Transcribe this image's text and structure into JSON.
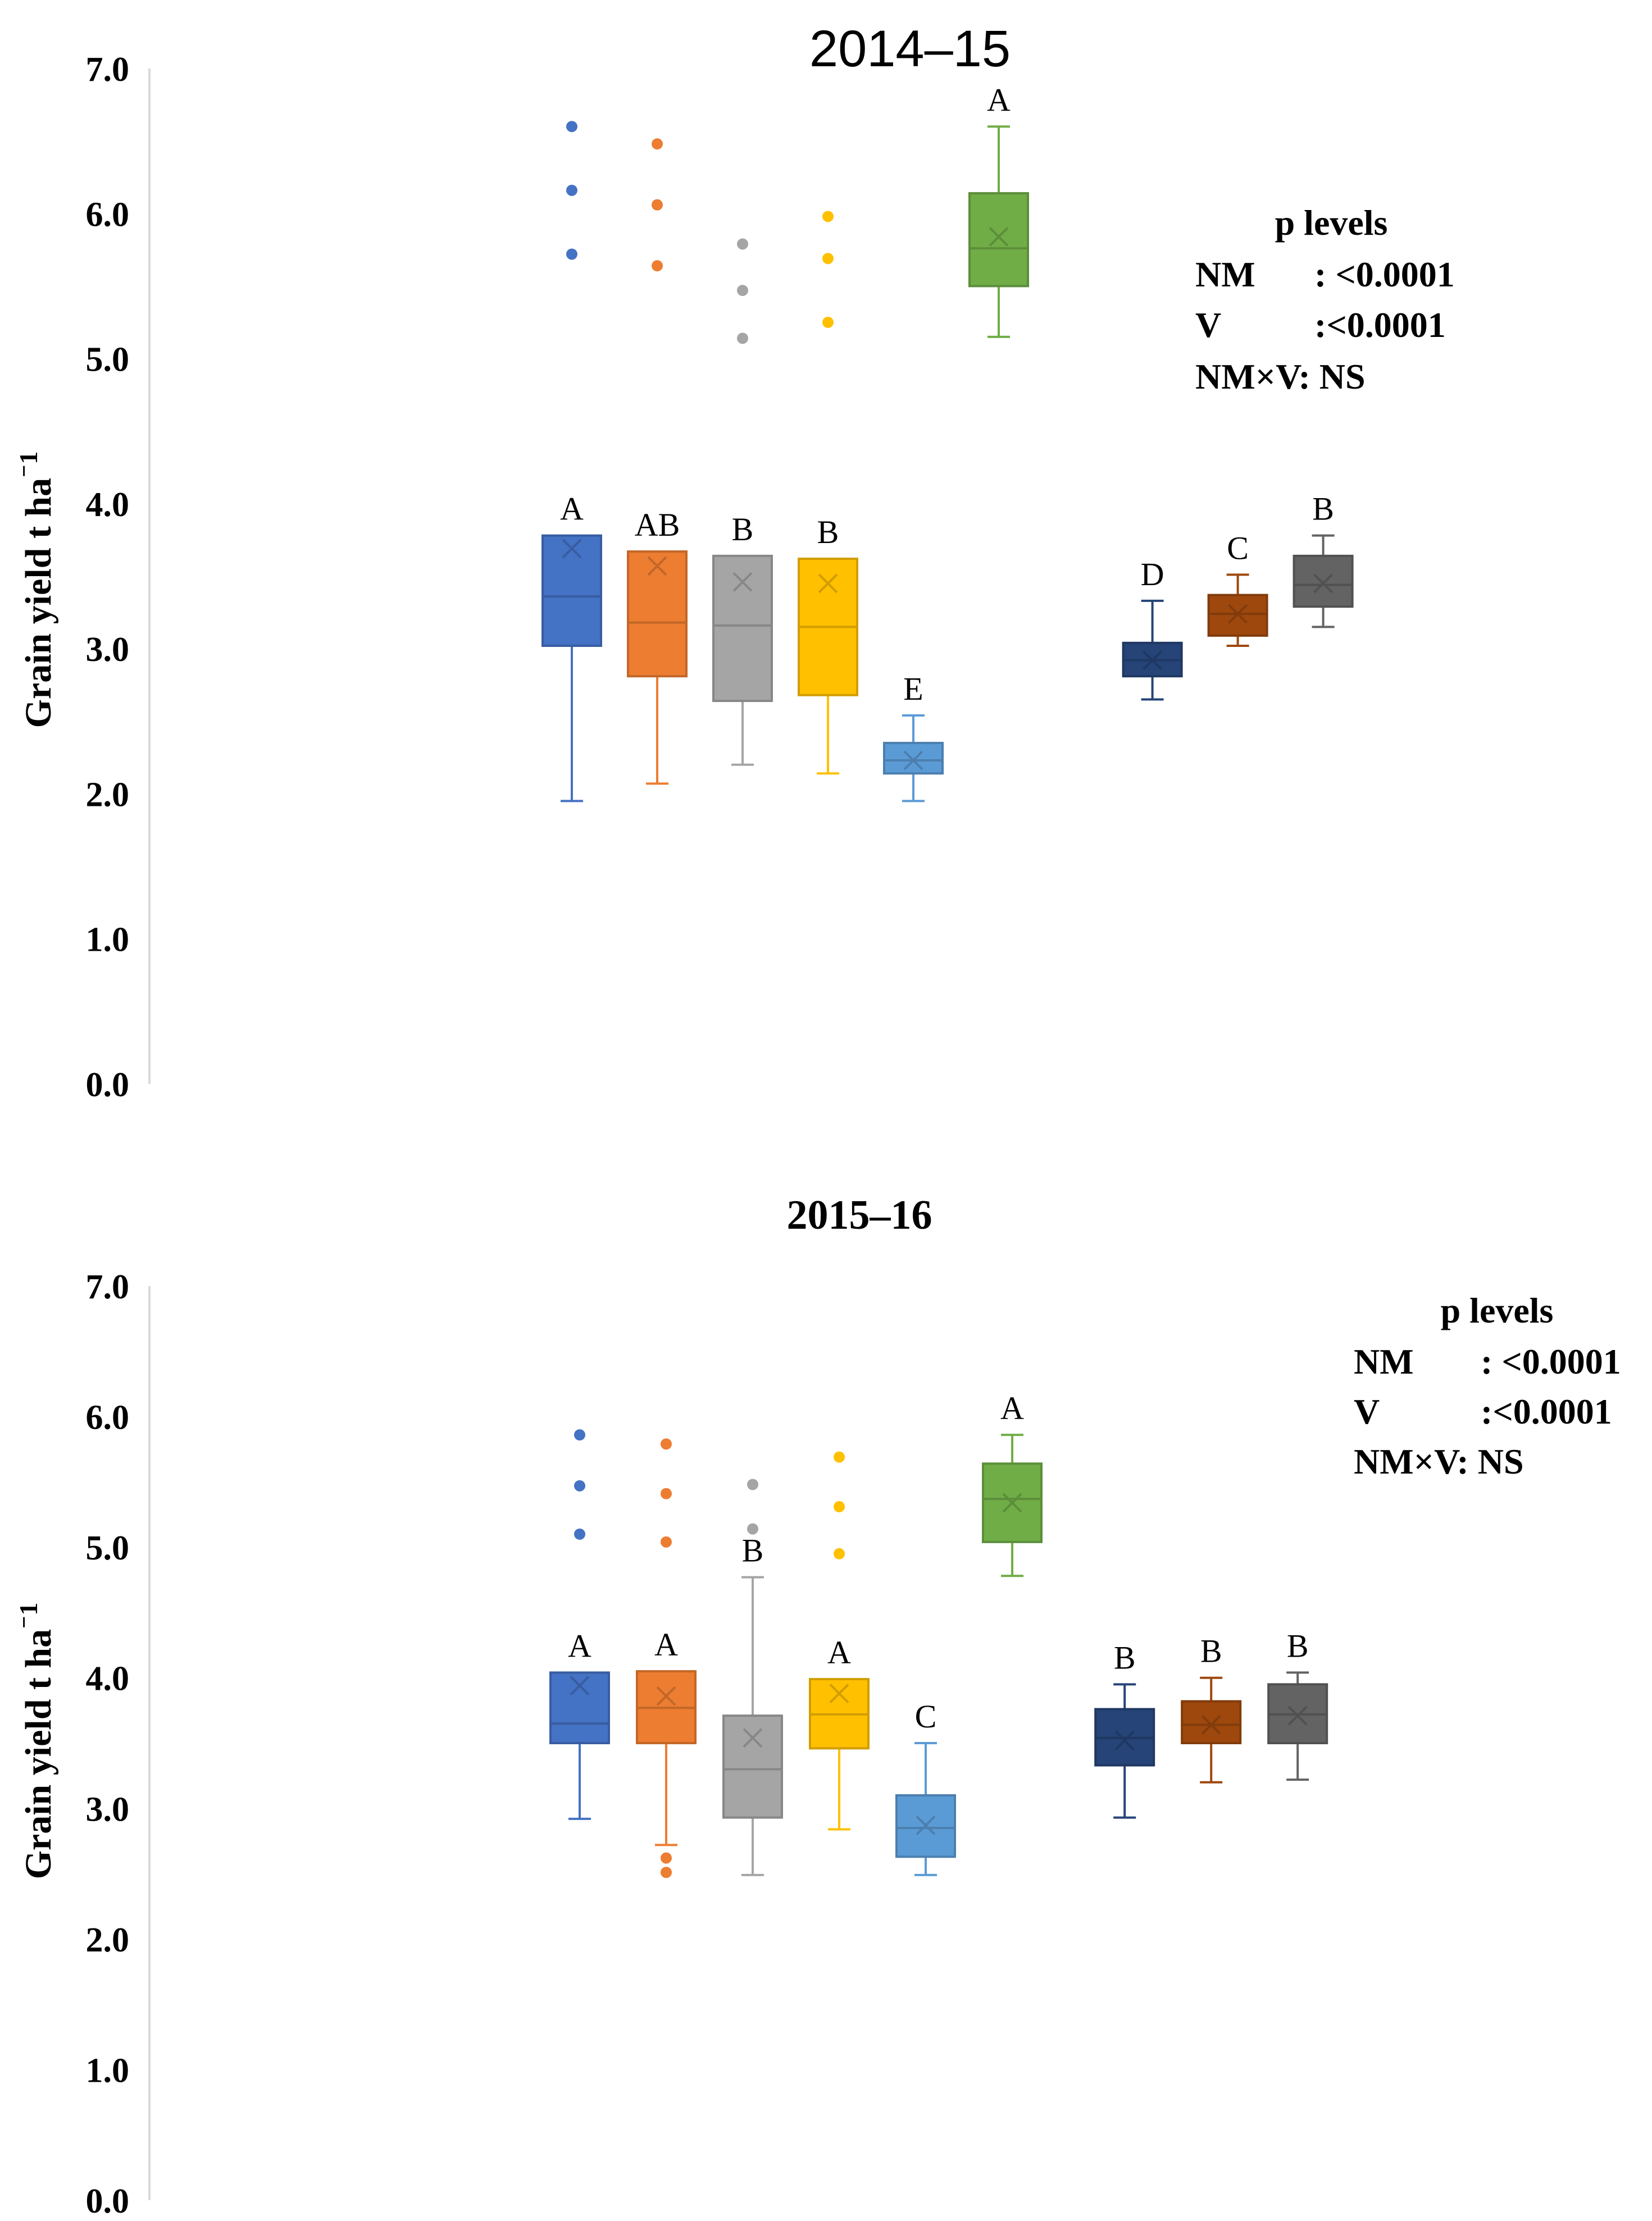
{
  "chart_data": [
    {
      "type": "box",
      "title": "2014–15",
      "ylabel": "Grain yield t ha",
      "ylabel_superscript": "⁻1",
      "ylim": [
        0,
        7
      ],
      "yticks": [
        "0.0",
        "1.0",
        "2.0",
        "3.0",
        "4.0",
        "5.0",
        "6.0",
        "7.0"
      ],
      "colors": [
        "#4472C4",
        "#ED7D31",
        "#A5A5A5",
        "#FFC000",
        "#5B9BD5",
        "#70AD47",
        "#264478",
        "#9E480E",
        "#636363"
      ],
      "groups": [
        {
          "slot": 1,
          "min": 1.95,
          "q1": 3.02,
          "median": 3.36,
          "q3": 3.78,
          "max": 3.78,
          "mean": 3.69,
          "outliers": [
            5.72,
            6.16,
            6.6
          ],
          "letter": "A"
        },
        {
          "slot": 2,
          "min": 2.07,
          "q1": 2.81,
          "median": 3.18,
          "q3": 3.67,
          "max": 3.67,
          "mean": 3.57,
          "outliers": [
            5.64,
            6.06,
            6.48
          ],
          "letter": "AB"
        },
        {
          "slot": 3,
          "min": 2.2,
          "q1": 2.64,
          "median": 3.16,
          "q3": 3.64,
          "max": 3.64,
          "mean": 3.46,
          "outliers": [
            5.14,
            5.47,
            5.79
          ],
          "letter": "B"
        },
        {
          "slot": 4,
          "min": 2.14,
          "q1": 2.68,
          "median": 3.15,
          "q3": 3.62,
          "max": 3.62,
          "mean": 3.45,
          "outliers": [
            5.25,
            5.69,
            5.98
          ],
          "letter": "B"
        },
        {
          "slot": 5,
          "min": 1.95,
          "q1": 2.14,
          "median": 2.23,
          "q3": 2.35,
          "max": 2.54,
          "mean": 2.23,
          "outliers": [],
          "letter": "E"
        },
        {
          "slot": 6,
          "min": 5.15,
          "q1": 5.5,
          "median": 5.76,
          "q3": 6.14,
          "max": 6.6,
          "mean": 5.84,
          "outliers": [],
          "letter": "A"
        },
        {
          "slot": 7.8,
          "min": 2.65,
          "q1": 2.81,
          "median": 2.92,
          "q3": 3.04,
          "max": 3.33,
          "mean": 2.92,
          "outliers": [],
          "letter": "D"
        },
        {
          "slot": 8.8,
          "min": 3.02,
          "q1": 3.09,
          "median": 3.24,
          "q3": 3.37,
          "max": 3.51,
          "mean": 3.24,
          "outliers": [],
          "letter": "C"
        },
        {
          "slot": 9.8,
          "min": 3.15,
          "q1": 3.29,
          "median": 3.44,
          "q3": 3.64,
          "max": 3.78,
          "mean": 3.45,
          "outliers": [],
          "letter": "B"
        }
      ],
      "p_levels": {
        "title": "p levels",
        "rows": [
          {
            "label": "NM",
            "value": ": <0.0001"
          },
          {
            "label": "V",
            "value": ":<0.0001"
          },
          {
            "label": "NM×V: NS",
            "value": ""
          }
        ]
      }
    },
    {
      "type": "box",
      "title": "2015‒16",
      "ylabel": "Grain yield t ha",
      "ylabel_superscript": "⁻1",
      "ylim": [
        0,
        7
      ],
      "yticks": [
        "0.0",
        "1.0",
        "2.0",
        "3.0",
        "4.0",
        "5.0",
        "6.0",
        "7.0"
      ],
      "colors": [
        "#4472C4",
        "#ED7D31",
        "#A5A5A5",
        "#FFC000",
        "#5B9BD5",
        "#70AD47",
        "#264478",
        "#9E480E",
        "#636363"
      ],
      "groups": [
        {
          "slot": 1,
          "min": 2.92,
          "q1": 3.5,
          "median": 3.65,
          "q3": 4.04,
          "max": 4.04,
          "mean": 3.94,
          "outliers": [
            5.1,
            5.47,
            5.86
          ],
          "letter": "A"
        },
        {
          "slot": 2,
          "min": 2.72,
          "q1": 3.5,
          "median": 3.77,
          "q3": 4.05,
          "max": 4.05,
          "mean": 3.86,
          "outliers": [
            2.51,
            2.62,
            5.04,
            5.41,
            5.79
          ],
          "letter": "A"
        },
        {
          "slot": 3,
          "min": 2.49,
          "q1": 2.93,
          "median": 3.3,
          "q3": 3.71,
          "max": 4.77,
          "mean": 3.54,
          "outliers": [
            5.14,
            5.48
          ],
          "letter": "B"
        },
        {
          "slot": 4,
          "min": 2.84,
          "q1": 3.46,
          "median": 3.72,
          "q3": 3.99,
          "max": 3.99,
          "mean": 3.88,
          "outliers": [
            4.95,
            5.31,
            5.69
          ],
          "letter": "A"
        },
        {
          "slot": 5,
          "min": 2.49,
          "q1": 2.63,
          "median": 2.85,
          "q3": 3.1,
          "max": 3.5,
          "mean": 2.87,
          "outliers": [],
          "letter": "C"
        },
        {
          "slot": 6,
          "min": 4.78,
          "q1": 5.04,
          "median": 5.37,
          "q3": 5.64,
          "max": 5.86,
          "mean": 5.34,
          "outliers": [],
          "letter": "A"
        },
        {
          "slot": 7.3,
          "min": 2.93,
          "q1": 3.33,
          "median": 3.54,
          "q3": 3.76,
          "max": 3.95,
          "mean": 3.52,
          "outliers": [],
          "letter": "B"
        },
        {
          "slot": 8.3,
          "min": 3.2,
          "q1": 3.5,
          "median": 3.64,
          "q3": 3.82,
          "max": 4.0,
          "mean": 3.64,
          "outliers": [],
          "letter": "B"
        },
        {
          "slot": 9.3,
          "min": 3.22,
          "q1": 3.5,
          "median": 3.72,
          "q3": 3.95,
          "max": 4.04,
          "mean": 3.71,
          "outliers": [],
          "letter": "B"
        }
      ],
      "p_levels": {
        "title": "p levels",
        "rows": [
          {
            "label": "NM",
            "value": ": <0.0001"
          },
          {
            "label": "V",
            "value": ":<0.0001"
          },
          {
            "label": "NM×V: NS",
            "value": ""
          }
        ]
      }
    }
  ]
}
